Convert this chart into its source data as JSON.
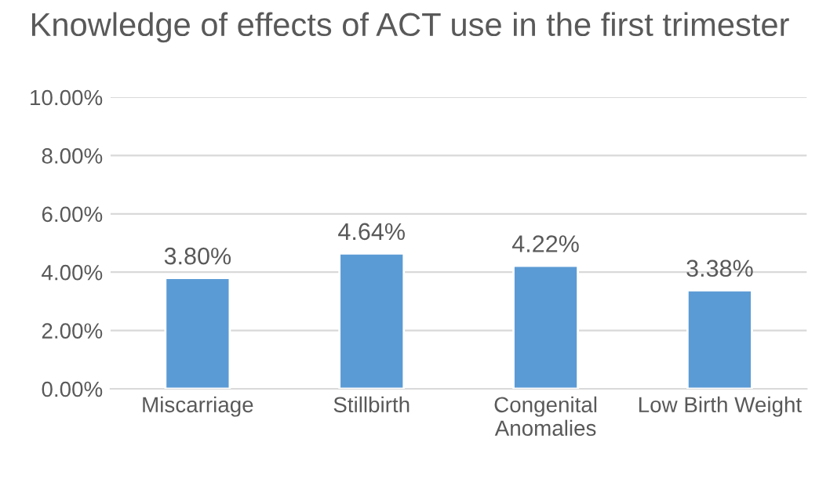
{
  "chart_data": {
    "type": "bar",
    "title": "Knowledge of effects of ACT use in the first trimester",
    "categories": [
      "Miscarriage",
      "Stillbirth",
      "Congenital\nAnomalies",
      "Low Birth Weight"
    ],
    "values": [
      3.8,
      4.64,
      4.22,
      3.38
    ],
    "value_labels": [
      "3.80%",
      "4.64%",
      "4.22%",
      "3.38%"
    ],
    "color": "#5b9bd5",
    "ylim": [
      0,
      10
    ],
    "yticks": [
      {
        "value": 0,
        "label": "0.00%"
      },
      {
        "value": 2,
        "label": "2.00%"
      },
      {
        "value": 4,
        "label": "4.00%"
      },
      {
        "value": 6,
        "label": "6.00%"
      },
      {
        "value": 8,
        "label": "8.00%"
      },
      {
        "value": 10,
        "label": "10.00%"
      }
    ],
    "grid": "y",
    "legend": false
  }
}
